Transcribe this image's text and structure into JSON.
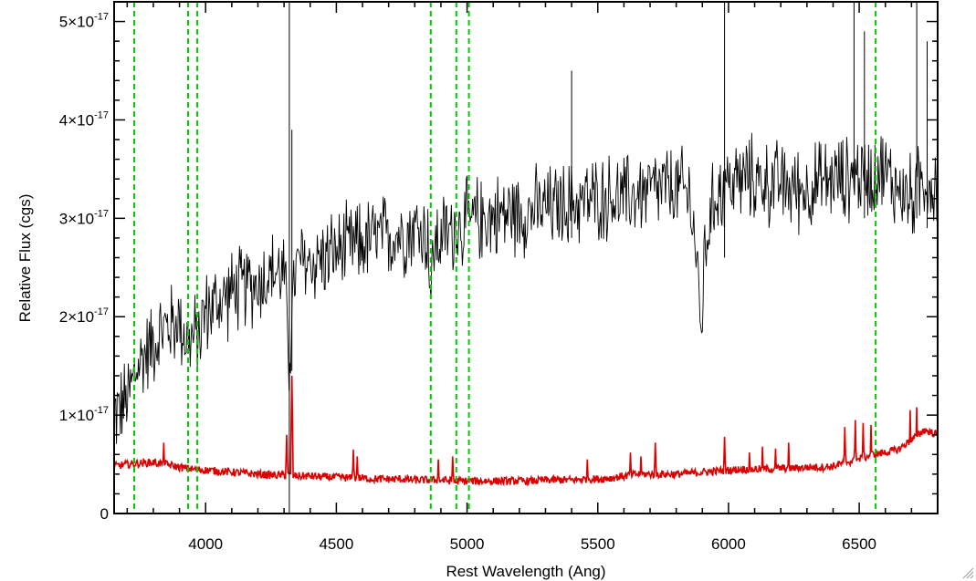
{
  "chart_data": {
    "type": "line",
    "title": "",
    "xlabel": "Rest Wavelength (Ang)",
    "ylabel": "Relative Flux (cgs)",
    "xlim": [
      3650,
      6800
    ],
    "ylim": [
      0,
      5.2e-17
    ],
    "x_ticks": [
      4000,
      4500,
      5000,
      5500,
      6000,
      6500
    ],
    "x_tick_labels": [
      "4000",
      "4500",
      "5000",
      "5500",
      "6000",
      "6500"
    ],
    "y_ticks": [
      0,
      1e-17,
      2e-17,
      3e-17,
      4e-17,
      5e-17
    ],
    "y_tick_labels": [
      {
        "mantissa": "0",
        "exponent": ""
      },
      {
        "mantissa": "1×10",
        "exponent": "-17"
      },
      {
        "mantissa": "2×10",
        "exponent": "-17"
      },
      {
        "mantissa": "3×10",
        "exponent": "-17"
      },
      {
        "mantissa": "4×10",
        "exponent": "-17"
      },
      {
        "mantissa": "5×10",
        "exponent": "-17"
      }
    ],
    "grid": false,
    "legend": "none",
    "series": [
      {
        "color": "#000000",
        "style": "solid",
        "x": [
          3650,
          3700,
          3727,
          3750,
          3800,
          3850,
          3900,
          3933,
          3968,
          4000,
          4050,
          4100,
          4150,
          4200,
          4250,
          4300,
          4320,
          4340,
          4360,
          4400,
          4450,
          4500,
          4550,
          4600,
          4650,
          4700,
          4750,
          4800,
          4850,
          4861,
          4875,
          4900,
          4950,
          5000,
          5050,
          5100,
          5150,
          5200,
          5250,
          5300,
          5350,
          5400,
          5450,
          5500,
          5550,
          5600,
          5650,
          5700,
          5750,
          5800,
          5850,
          5880,
          5893,
          5910,
          5950,
          6000,
          6050,
          6100,
          6150,
          6200,
          6250,
          6300,
          6350,
          6400,
          6450,
          6500,
          6550,
          6563,
          6600,
          6650,
          6700,
          6750,
          6800
        ],
        "values": [
          1e-17,
          1.15e-17,
          1.4e-17,
          1.55e-17,
          1.75e-17,
          1.9e-17,
          1.95e-17,
          1.75e-17,
          1.8e-17,
          2.05e-17,
          2.15e-17,
          2.25e-17,
          2.3e-17,
          2.35e-17,
          2.45e-17,
          2.45e-17,
          1.55e-17,
          2.4e-17,
          2.55e-17,
          2.55e-17,
          2.6e-17,
          2.65e-17,
          2.7e-17,
          2.75e-17,
          2.8e-17,
          2.82e-17,
          2.85e-17,
          2.9e-17,
          2.85e-17,
          2.2e-17,
          2.75e-17,
          2.8e-17,
          2.9e-17,
          2.95e-17,
          3e-17,
          3.02e-17,
          3.05e-17,
          3.05e-17,
          3.08e-17,
          3.1e-17,
          3.12e-17,
          3.15e-17,
          3.18e-17,
          3.2e-17,
          3.22e-17,
          3.2e-17,
          3.25e-17,
          3.28e-17,
          3.3e-17,
          3.3e-17,
          3.25e-17,
          2.6e-17,
          1.75e-17,
          2.7e-17,
          3.25e-17,
          3.35e-17,
          3.4e-17,
          3.4e-17,
          3.35e-17,
          3.35e-17,
          3.3e-17,
          3.3e-17,
          3.35e-17,
          3.4e-17,
          3.4e-17,
          3.45e-17,
          3.4e-17,
          3.55e-17,
          3.45e-17,
          3.3e-17,
          3.2e-17,
          3.4e-17,
          3.3e-17
        ],
        "noise": 3.5e-18
      },
      {
        "color": "#dd0000",
        "style": "solid",
        "x": [
          3650,
          3700,
          3750,
          3800,
          3850,
          3900,
          3950,
          4000,
          4050,
          4100,
          4150,
          4200,
          4250,
          4300,
          4350,
          4400,
          4450,
          4500,
          4550,
          4600,
          4650,
          4700,
          4750,
          4800,
          4850,
          4900,
          4950,
          5000,
          5050,
          5100,
          5150,
          5200,
          5250,
          5300,
          5350,
          5400,
          5450,
          5500,
          5550,
          5600,
          5650,
          5700,
          5750,
          5800,
          5850,
          5900,
          5950,
          6000,
          6050,
          6100,
          6150,
          6200,
          6250,
          6300,
          6350,
          6400,
          6450,
          6500,
          6550,
          6600,
          6650,
          6700,
          6750,
          6800
        ],
        "values": [
          4.8e-18,
          5e-18,
          5.1e-18,
          5.2e-18,
          5e-18,
          4.7e-18,
          4.5e-18,
          4.4e-18,
          4.3e-18,
          4.2e-18,
          4.1e-18,
          4e-18,
          3.9e-18,
          3.9e-18,
          3.8e-18,
          3.8e-18,
          3.7e-18,
          3.7e-18,
          3.6e-18,
          3.6e-18,
          3.5e-18,
          3.5e-18,
          3.5e-18,
          3.4e-18,
          3.4e-18,
          3.4e-18,
          3.3e-18,
          3.3e-18,
          3.3e-18,
          3.3e-18,
          3.3e-18,
          3.3e-18,
          3.3e-18,
          3.4e-18,
          3.4e-18,
          3.4e-18,
          3.5e-18,
          3.5e-18,
          3.6e-18,
          3.8e-18,
          4e-18,
          4e-18,
          4e-18,
          4e-18,
          4.1e-18,
          4.2e-18,
          4.3e-18,
          4.4e-18,
          4.5e-18,
          4.5e-18,
          4.5e-18,
          4.6e-18,
          4.6e-18,
          4.7e-18,
          4.7e-18,
          4.8e-18,
          5.2e-18,
          5.5e-18,
          6e-18,
          6.2e-18,
          6.5e-18,
          7.5e-18,
          8.5e-18,
          8e-18
        ],
        "noise": 4e-19,
        "spikes": [
          {
            "x": 3840,
            "y": 7.2e-18
          },
          {
            "x": 4310,
            "y": 8e-18
          },
          {
            "x": 4330,
            "y": 1.4e-17
          },
          {
            "x": 4565,
            "y": 6.5e-18
          },
          {
            "x": 4580,
            "y": 5.8e-18
          },
          {
            "x": 4890,
            "y": 5.5e-18
          },
          {
            "x": 4945,
            "y": 5.8e-18
          },
          {
            "x": 5460,
            "y": 5.5e-18
          },
          {
            "x": 5625,
            "y": 6.2e-18
          },
          {
            "x": 5665,
            "y": 5.8e-18
          },
          {
            "x": 5720,
            "y": 7.2e-18
          },
          {
            "x": 5985,
            "y": 7.8e-18
          },
          {
            "x": 6080,
            "y": 6.2e-18
          },
          {
            "x": 6130,
            "y": 6.8e-18
          },
          {
            "x": 6180,
            "y": 6.6e-18
          },
          {
            "x": 6230,
            "y": 7.2e-18
          },
          {
            "x": 6445,
            "y": 8.8e-18
          },
          {
            "x": 6485,
            "y": 9.5e-18
          },
          {
            "x": 6515,
            "y": 9.2e-18
          },
          {
            "x": 6545,
            "y": 9e-18
          },
          {
            "x": 6695,
            "y": 1.05e-17
          },
          {
            "x": 6720,
            "y": 1.08e-17
          }
        ]
      }
    ],
    "vertical_lines": {
      "color": "#00cc00",
      "style": "dashed",
      "x": [
        3727,
        3933,
        3968,
        4861,
        4959,
        5007,
        6563
      ]
    }
  }
}
